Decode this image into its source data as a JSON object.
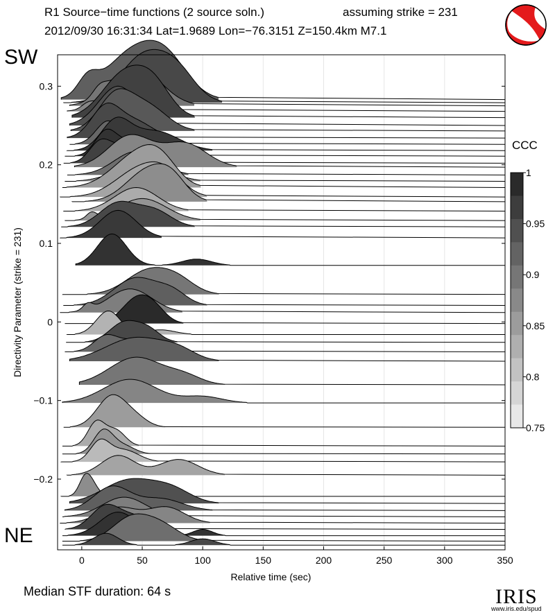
{
  "header": {
    "title_left": "R1 Source−time functions (2 source soln.)",
    "title_right": "assuming strike = 231",
    "subtitle": "2012/09/30 16:31:34  Lat=1.9689 Lon=−76.3151  Z=150.4km  M7.1"
  },
  "labels": {
    "top": "SW",
    "bottom": "NE"
  },
  "footer": {
    "median": "Median STF duration: 64 s"
  },
  "logo": {
    "word": "IRIS",
    "url": "www.iris.edu/spud"
  },
  "colorbar": {
    "title": "CCC",
    "ticks": [
      "1",
      "0.95",
      "0.9",
      "0.85",
      "0.8",
      "0.75"
    ],
    "levels": [
      1.0,
      0.975,
      0.95,
      0.925,
      0.9,
      0.875,
      0.85,
      0.825,
      0.8,
      0.775,
      0.75
    ]
  },
  "chart_data": {
    "type": "area",
    "xlabel": "Relative time (sec)",
    "ylabel": "Directivity Parameter (strike = 231)",
    "xlim": [
      -20,
      350
    ],
    "ylim": [
      -0.29,
      0.34
    ],
    "x_ticks": [
      0,
      50,
      100,
      150,
      200,
      250,
      300,
      350
    ],
    "y_ticks": [
      0.3,
      0.2,
      0.1,
      0,
      -0.1,
      -0.2
    ],
    "y_tick_labels": [
      "0.3",
      "0.2",
      "0.1",
      "0",
      "−0.1",
      "−0.2"
    ],
    "grid": true,
    "series": [
      {
        "y": 0.283,
        "start": -17,
        "peaks": [
          [
            5,
            0.02,
            8
          ],
          [
            40,
            0.055,
            22
          ],
          [
            70,
            0.045,
            18
          ]
        ],
        "ccc": 0.93
      },
      {
        "y": 0.279,
        "start": -15,
        "peaks": [
          [
            52,
            0.06,
            20
          ],
          [
            80,
            0.03,
            15
          ]
        ],
        "ccc": 0.96
      },
      {
        "y": 0.275,
        "start": -10,
        "peaks": [
          [
            15,
            0.012,
            6
          ],
          [
            45,
            0.05,
            20
          ]
        ],
        "ccc": 0.9
      },
      {
        "y": 0.268,
        "start": -12,
        "peaks": [
          [
            5,
            0.006,
            5
          ],
          [
            40,
            0.04,
            18
          ]
        ],
        "ccc": 0.88
      },
      {
        "y": 0.26,
        "start": -8,
        "peaks": [
          [
            35,
            0.055,
            18
          ],
          [
            60,
            0.035,
            14
          ]
        ],
        "ccc": 0.97
      },
      {
        "y": 0.25,
        "start": -10,
        "peaks": [
          [
            30,
            0.05,
            16
          ]
        ],
        "ccc": 0.95
      },
      {
        "y": 0.243,
        "start": -9,
        "peaks": [
          [
            28,
            0.045,
            14
          ],
          [
            55,
            0.03,
            16
          ]
        ],
        "ccc": 0.94
      },
      {
        "y": 0.234,
        "start": -12,
        "peaks": [
          [
            20,
            0.04,
            12
          ],
          [
            45,
            0.02,
            14
          ]
        ],
        "ccc": 0.96
      },
      {
        "y": 0.226,
        "start": -10,
        "peaks": [
          [
            22,
            0.03,
            10
          ]
        ],
        "ccc": 0.92
      },
      {
        "y": 0.218,
        "start": -12,
        "peaks": [
          [
            28,
            0.035,
            12
          ],
          [
            60,
            0.025,
            20
          ]
        ],
        "ccc": 0.98
      },
      {
        "y": 0.211,
        "start": -14,
        "peaks": [
          [
            20,
            0.03,
            9
          ],
          [
            45,
            0.02,
            14
          ]
        ],
        "ccc": 0.99
      },
      {
        "y": 0.202,
        "start": -15,
        "peaks": [
          [
            15,
            0.025,
            9
          ],
          [
            35,
            0.02,
            12
          ]
        ],
        "ccc": 0.97
      },
      {
        "y": 0.197,
        "start": -6,
        "peaks": [
          [
            40,
            0.04,
            18
          ],
          [
            85,
            0.03,
            18
          ]
        ],
        "ccc": 0.88
      },
      {
        "y": 0.187,
        "start": -12,
        "peaks": [
          [
            45,
            0.03,
            18
          ]
        ],
        "ccc": 0.91
      },
      {
        "y": 0.179,
        "start": -14,
        "peaks": [
          [
            50,
            0.025,
            20
          ]
        ],
        "ccc": 0.86
      },
      {
        "y": 0.171,
        "start": -16,
        "peaks": [
          [
            45,
            0.04,
            20
          ],
          [
            65,
            0.025,
            14
          ]
        ],
        "ccc": 0.85
      },
      {
        "y": 0.159,
        "start": -18,
        "peaks": [
          [
            48,
            0.035,
            20
          ],
          [
            70,
            0.02,
            14
          ]
        ],
        "ccc": 0.84
      },
      {
        "y": 0.153,
        "start": -8,
        "peaks": [
          [
            55,
            0.04,
            18
          ],
          [
            75,
            0.02,
            12
          ]
        ],
        "ccc": 0.87
      },
      {
        "y": 0.141,
        "start": -15,
        "peaks": [
          [
            45,
            0.03,
            18
          ]
        ],
        "ccc": 0.83
      },
      {
        "y": 0.129,
        "start": -14,
        "peaks": [
          [
            8,
            0.008,
            4
          ],
          [
            50,
            0.028,
            20
          ]
        ],
        "ccc": 0.86
      },
      {
        "y": 0.121,
        "start": -17,
        "peaks": [
          [
            30,
            0.03,
            15
          ],
          [
            60,
            0.02,
            14
          ]
        ],
        "ccc": 0.96
      },
      {
        "y": 0.107,
        "start": -18,
        "peaks": [
          [
            30,
            0.035,
            15
          ]
        ],
        "ccc": 0.98
      },
      {
        "y": 0.072,
        "start": -5,
        "peaks": [
          [
            25,
            0.04,
            12
          ],
          [
            95,
            0.008,
            12
          ]
        ],
        "ccc": 0.99
      },
      {
        "y": 0.035,
        "start": -16,
        "peaks": [
          [
            55,
            0.03,
            18
          ],
          [
            80,
            0.015,
            14
          ]
        ],
        "ccc": 0.9
      },
      {
        "y": 0.021,
        "start": -15,
        "peaks": [
          [
            45,
            0.035,
            18
          ],
          [
            75,
            0.015,
            12
          ]
        ],
        "ccc": 0.93
      },
      {
        "y": 0.012,
        "start": -18,
        "peaks": [
          [
            5,
            0.008,
            4
          ],
          [
            40,
            0.03,
            18
          ]
        ],
        "ccc": 0.89
      },
      {
        "y": -0.002,
        "start": -14,
        "peaks": [
          [
            45,
            0.03,
            12
          ],
          [
            60,
            0.015,
            10
          ]
        ],
        "ccc": 1.0
      },
      {
        "y": -0.016,
        "start": -12,
        "peaks": [
          [
            22,
            0.03,
            10
          ],
          [
            65,
            0.006,
            12
          ]
        ],
        "ccc": 0.82
      },
      {
        "y": -0.026,
        "start": -13,
        "peaks": [
          [
            35,
            0.025,
            12
          ],
          [
            55,
            0.015,
            10
          ]
        ],
        "ccc": 0.96
      },
      {
        "y": -0.038,
        "start": -14,
        "peaks": [
          [
            20,
            0.02,
            10
          ],
          [
            45,
            0.015,
            12
          ]
        ],
        "ccc": 0.92
      },
      {
        "y": -0.05,
        "start": -10,
        "peaks": [
          [
            45,
            0.03,
            25
          ],
          [
            80,
            0.01,
            14
          ]
        ],
        "ccc": 0.93
      },
      {
        "y": -0.08,
        "start": -2,
        "peaks": [
          [
            45,
            0.035,
            22
          ],
          [
            85,
            0.01,
            14
          ]
        ],
        "ccc": 0.9
      },
      {
        "y": -0.103,
        "start": -16,
        "peaks": [
          [
            40,
            0.03,
            22
          ],
          [
            100,
            0.008,
            16
          ]
        ],
        "ccc": 0.88
      },
      {
        "y": -0.134,
        "start": -15,
        "peaks": [
          [
            25,
            0.04,
            12
          ],
          [
            45,
            0.01,
            10
          ]
        ],
        "ccc": 0.85
      },
      {
        "y": -0.158,
        "start": -16,
        "peaks": [
          [
            12,
            0.03,
            7
          ],
          [
            28,
            0.02,
            8
          ]
        ],
        "ccc": 0.83
      },
      {
        "y": -0.168,
        "start": -16,
        "peaks": [
          [
            18,
            0.03,
            8
          ],
          [
            35,
            0.01,
            9
          ]
        ],
        "ccc": 0.86
      },
      {
        "y": -0.178,
        "start": -17,
        "peaks": [
          [
            15,
            0.025,
            8
          ],
          [
            35,
            0.015,
            12
          ]
        ],
        "ccc": 0.81
      },
      {
        "y": -0.195,
        "start": -12,
        "peaks": [
          [
            30,
            0.025,
            14
          ],
          [
            80,
            0.02,
            16
          ]
        ],
        "ccc": 0.84
      },
      {
        "y": -0.222,
        "start": -17,
        "peaks": [
          [
            3,
            0.025,
            5
          ],
          [
            10,
            0.01,
            5
          ]
        ],
        "ccc": 0.87
      },
      {
        "y": -0.231,
        "start": -10,
        "peaks": [
          [
            40,
            0.03,
            22
          ],
          [
            75,
            0.015,
            16
          ]
        ],
        "ccc": 0.95
      },
      {
        "y": -0.24,
        "start": -14,
        "peaks": [
          [
            25,
            0.03,
            15
          ],
          [
            65,
            0.015,
            18
          ]
        ],
        "ccc": 0.93
      },
      {
        "y": -0.248,
        "start": -16,
        "peaks": [
          [
            35,
            0.025,
            18
          ]
        ],
        "ccc": 0.89
      },
      {
        "y": -0.256,
        "start": -18,
        "peaks": [
          [
            30,
            0.02,
            16
          ],
          [
            70,
            0.02,
            15
          ]
        ],
        "ccc": 0.88
      },
      {
        "y": -0.264,
        "start": -14,
        "peaks": [
          [
            20,
            0.03,
            12
          ],
          [
            45,
            0.015,
            12
          ]
        ],
        "ccc": 0.97
      },
      {
        "y": -0.272,
        "start": -16,
        "peaks": [
          [
            30,
            0.03,
            15
          ],
          [
            100,
            0.008,
            8
          ]
        ],
        "ccc": 0.99
      },
      {
        "y": -0.279,
        "start": -16,
        "peaks": [
          [
            40,
            0.028,
            15
          ],
          [
            65,
            0.02,
            15
          ]
        ],
        "ccc": 0.91
      },
      {
        "y": -0.284,
        "start": -16,
        "peaks": [
          [
            20,
            0.015,
            10
          ],
          [
            100,
            0.008,
            10
          ]
        ],
        "ccc": 0.96
      }
    ]
  }
}
